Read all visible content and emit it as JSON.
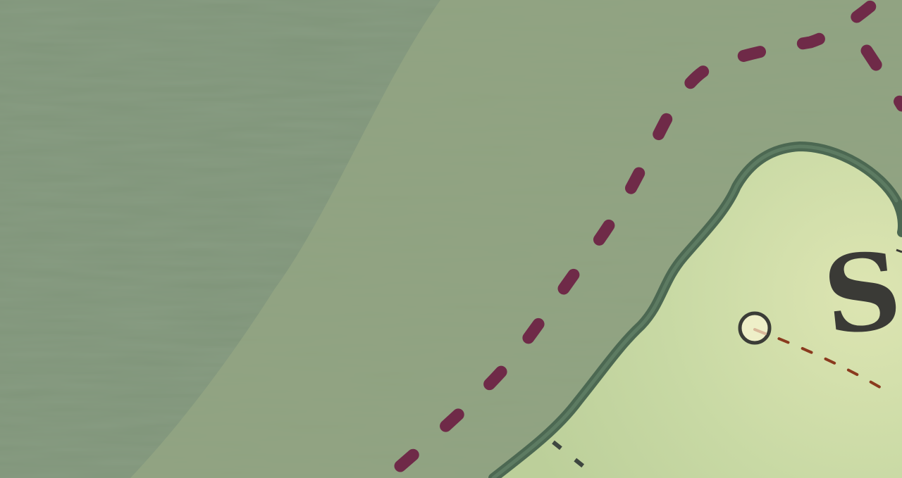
{
  "map": {
    "colors": {
      "deep_water": "#7f9474",
      "shallow_water": "#93a482",
      "land_light": "#dbe4b0",
      "land_dark": "#bfd3a0",
      "coast_outline": "#4c6852",
      "route_line": "#6f2a48",
      "trail_line": "#8a3a1e",
      "label_color": "#3a3a36",
      "marker_fill": "#eeefc8",
      "marker_stroke": "#3b3d37"
    },
    "label": "S",
    "features": [
      "water",
      "island",
      "boat-route",
      "trail",
      "location-marker"
    ]
  }
}
